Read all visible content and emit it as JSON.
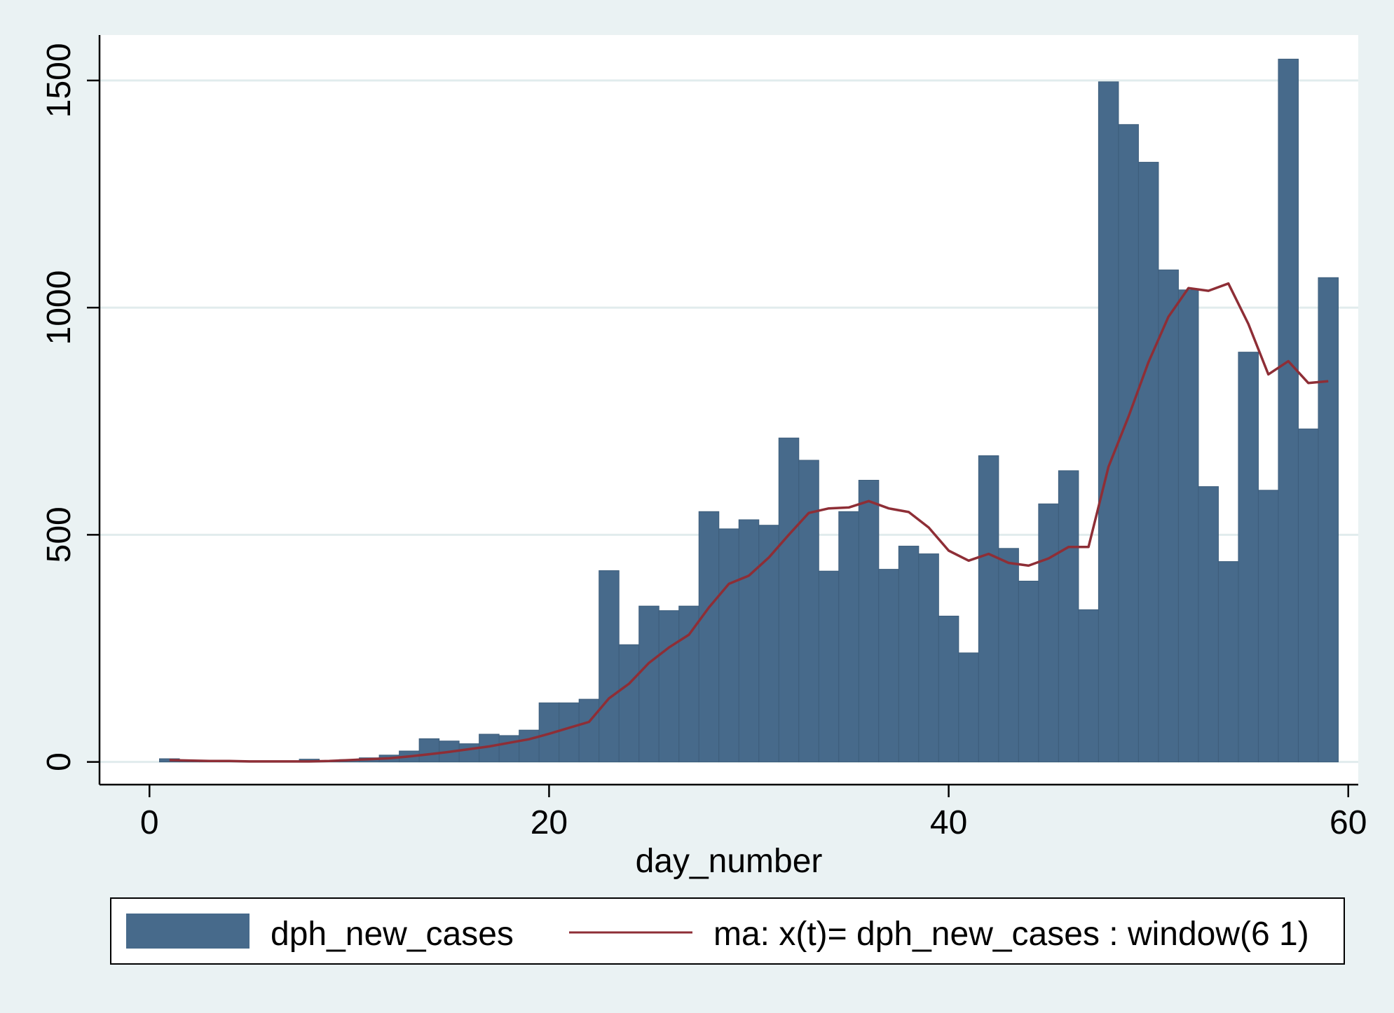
{
  "chart_data": {
    "type": "bar",
    "title": "",
    "xlabel": "day_number",
    "ylabel": "",
    "xlim": [
      -2.5,
      60.5
    ],
    "ylim": [
      -50,
      1600
    ],
    "x_ticks": [
      0,
      20,
      40,
      60
    ],
    "y_ticks": [
      0,
      500,
      1000,
      1500
    ],
    "grid": "horizontal",
    "legend_position": "bottom",
    "colors": {
      "background": "#eaf2f3",
      "plot_background": "#ffffff",
      "bar": "#476a8b",
      "line": "#8e2e36",
      "grid": "#e1eced"
    },
    "series": [
      {
        "name": "dph_new_cases",
        "type": "bar",
        "x": [
          1,
          2,
          3,
          4,
          5,
          6,
          7,
          8,
          9,
          10,
          11,
          12,
          13,
          14,
          15,
          16,
          17,
          18,
          19,
          20,
          21,
          22,
          23,
          24,
          25,
          26,
          27,
          28,
          29,
          30,
          31,
          32,
          33,
          34,
          35,
          36,
          37,
          38,
          39,
          40,
          41,
          42,
          43,
          44,
          45,
          46,
          47,
          48,
          49,
          50,
          51,
          52,
          53,
          54,
          55,
          56,
          57,
          58,
          59
        ],
        "values": [
          7,
          2,
          1,
          1,
          1,
          1,
          1,
          6,
          1,
          5,
          9,
          15,
          24,
          51,
          46,
          40,
          61,
          58,
          70,
          130,
          130,
          138,
          421,
          258,
          343,
          333,
          343,
          551,
          513,
          533,
          521,
          713,
          664,
          420,
          551,
          620,
          424,
          475,
          458,
          321,
          240,
          674,
          470,
          398,
          568,
          641,
          335,
          1497,
          1403,
          1320,
          1083,
          1039,
          606,
          441,
          902,
          598,
          1547,
          733,
          1066
        ]
      },
      {
        "name": "ma: x(t)= dph_new_cases : window(6 1)",
        "type": "line",
        "x": [
          1,
          2,
          3,
          4,
          5,
          6,
          7,
          8,
          9,
          10,
          11,
          12,
          13,
          14,
          15,
          16,
          17,
          18,
          19,
          20,
          21,
          22,
          23,
          24,
          25,
          26,
          27,
          28,
          29,
          30,
          31,
          32,
          33,
          34,
          35,
          36,
          37,
          38,
          39,
          40,
          41,
          42,
          43,
          44,
          45,
          46,
          47,
          48,
          49,
          50,
          51,
          52,
          53,
          54,
          55,
          56,
          57,
          58,
          59
        ],
        "values": [
          4,
          3,
          2,
          2,
          1,
          1,
          1,
          1,
          2,
          4,
          6,
          8,
          12,
          17,
          22,
          28,
          34,
          42,
          50,
          62,
          75,
          88,
          140,
          172,
          218,
          252,
          280,
          340,
          392,
          410,
          450,
          500,
          548,
          558,
          560,
          574,
          558,
          550,
          516,
          465,
          443,
          458,
          438,
          432,
          448,
          473,
          473,
          650,
          760,
          880,
          980,
          1043,
          1037,
          1053,
          964,
          853,
          882,
          834,
          838
        ]
      }
    ]
  }
}
